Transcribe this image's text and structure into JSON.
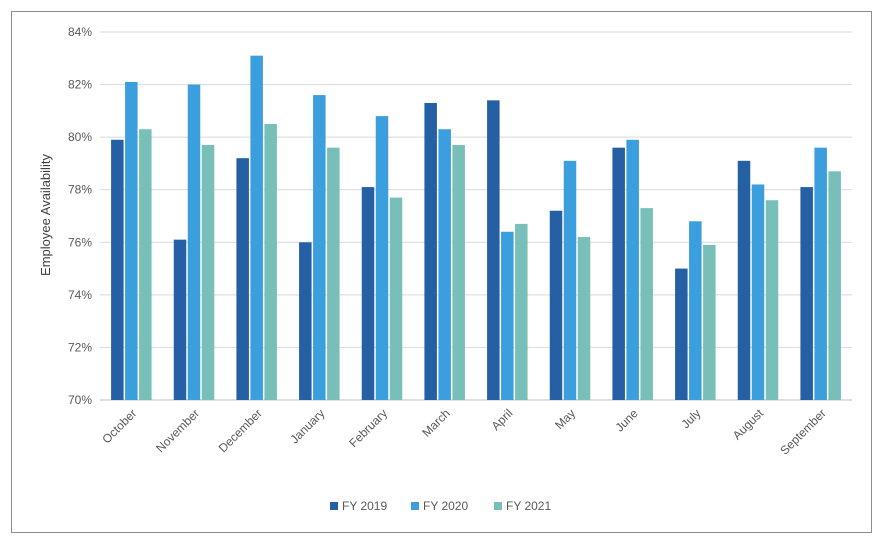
{
  "chart_data": {
    "type": "bar",
    "title": "",
    "xlabel": "",
    "ylabel": "Employee Availability",
    "ylim": [
      70,
      84
    ],
    "y_ticks": [
      "70%",
      "72%",
      "74%",
      "76%",
      "78%",
      "80%",
      "82%",
      "84%"
    ],
    "y_tick_values": [
      70,
      72,
      74,
      76,
      78,
      80,
      82,
      84
    ],
    "grid": true,
    "legend_position": "bottom",
    "categories": [
      "October",
      "November",
      "December",
      "January",
      "February",
      "March",
      "April",
      "May",
      "June",
      "July",
      "August",
      "September"
    ],
    "series": [
      {
        "name": "FY 2019",
        "color": "#2660a4",
        "values": [
          79.9,
          76.1,
          79.2,
          76.0,
          78.1,
          81.3,
          81.4,
          77.2,
          79.6,
          75.0,
          79.1,
          78.1
        ]
      },
      {
        "name": "FY 2020",
        "color": "#3a9fdc",
        "values": [
          82.1,
          82.0,
          83.1,
          81.6,
          80.8,
          80.3,
          76.4,
          79.1,
          79.9,
          76.8,
          78.2,
          79.6
        ]
      },
      {
        "name": "FY 2021",
        "color": "#77bfb8",
        "values": [
          80.3,
          79.7,
          80.5,
          79.6,
          77.7,
          79.7,
          76.7,
          76.2,
          77.3,
          75.9,
          77.6,
          78.7
        ]
      }
    ]
  }
}
